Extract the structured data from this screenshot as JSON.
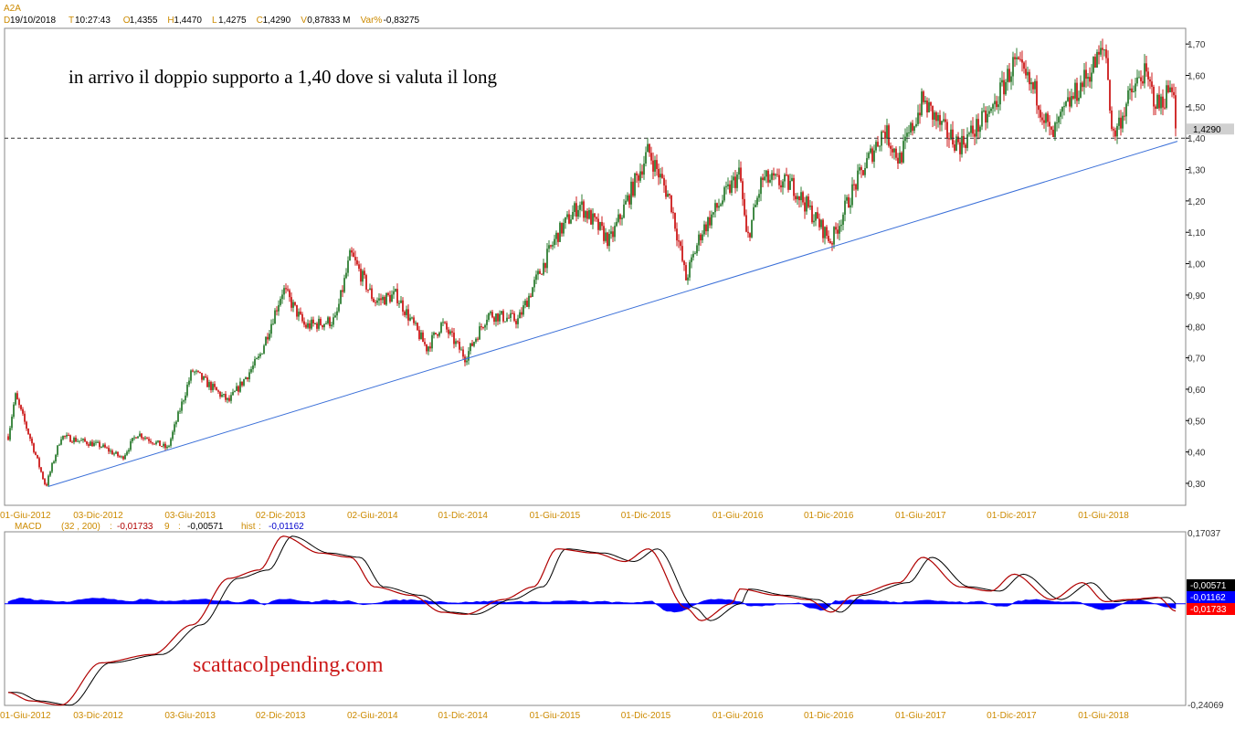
{
  "symbol": "A2A",
  "info_bar": [
    {
      "key": "D",
      "value": "19/10/2018"
    },
    {
      "key": "T",
      "value": "10:27:43"
    },
    {
      "key": "O",
      "value": "1,4355"
    },
    {
      "key": "H",
      "value": "1,4470"
    },
    {
      "key": "L",
      "value": "1,4275"
    },
    {
      "key": "C",
      "value": "1,4290"
    },
    {
      "key": "V",
      "value": "0,87833 M"
    },
    {
      "key": "Var%",
      "value": "-0,83275"
    }
  ],
  "colors": {
    "up": "#2e7d32",
    "down": "#cc1a1a",
    "axis_label": "#cc8a00",
    "trendline": "#3a6fd8",
    "macd_hist": "#0000ff",
    "macd_line": "#b00000",
    "signal_line": "#000000"
  },
  "chart_data": [
    {
      "type": "candlestick",
      "title": "",
      "annotation": "in arrivo il doppio supporto a 1,40 dove si valuta il long",
      "x_tick_labels": [
        "01-Giu-2012",
        "03-Dic-2012",
        "03-Giu-2013",
        "02-Dic-2013",
        "02-Giu-2014",
        "01-Dic-2014",
        "01-Giu-2015",
        "01-Dic-2015",
        "01-Giu-2016",
        "01-Dic-2016",
        "01-Giu-2017",
        "01-Dic-2017",
        "01-Giu-2018"
      ],
      "y_ticks": [
        "0,30",
        "0,40",
        "0,50",
        "0,60",
        "0,70",
        "0,80",
        "0,90",
        "1,00",
        "1,10",
        "1,20",
        "1,30",
        "1,40",
        "1,50",
        "1,60",
        "1,70"
      ],
      "ylim": [
        0.23,
        1.75
      ],
      "last_price_label": "1,4290",
      "support_level": 1.4,
      "trendline": {
        "from": [
          "01-Giu-2012",
          0.29
        ],
        "to": [
          "19/10/2018",
          1.39
        ]
      },
      "price_path": [
        [
          "01-Giu-2012",
          0.45
        ],
        [
          "2012-06",
          0.58
        ],
        [
          "2012-07",
          0.44
        ],
        [
          "2012-08",
          0.29
        ],
        [
          "2012-09",
          0.45
        ],
        [
          "03-Dic-2012",
          0.42
        ],
        [
          "2013-01",
          0.38
        ],
        [
          "2013-02",
          0.46
        ],
        [
          "2013-04",
          0.41
        ],
        [
          "03-Giu-2013",
          0.66
        ],
        [
          "2013-08",
          0.56
        ],
        [
          "2013-10",
          0.7
        ],
        [
          "02-Dic-2013",
          0.92
        ],
        [
          "2014-01",
          0.8
        ],
        [
          "2014-03",
          0.82
        ],
        [
          "2014-04",
          1.03
        ],
        [
          "02-Giu-2014",
          0.88
        ],
        [
          "2014-07",
          0.9
        ],
        [
          "2014-09",
          0.73
        ],
        [
          "2014-10",
          0.81
        ],
        [
          "01-Dic-2014",
          0.7
        ],
        [
          "2015-01",
          0.84
        ],
        [
          "2015-03",
          0.82
        ],
        [
          "2015-04",
          0.93
        ],
        [
          "01-Giu-2015",
          1.09
        ],
        [
          "2015-07",
          1.19
        ],
        [
          "2015-09",
          1.07
        ],
        [
          "01-Dic-2015",
          1.36
        ],
        [
          "2016-01",
          1.2
        ],
        [
          "2016-02",
          0.95
        ],
        [
          "2016-03",
          1.1
        ],
        [
          "01-Giu-2016",
          1.29
        ],
        [
          "2016-06",
          1.07
        ],
        [
          "2016-07",
          1.27
        ],
        [
          "2016-09",
          1.25
        ],
        [
          "01-Dic-2016",
          1.07
        ],
        [
          "2017-01",
          1.24
        ],
        [
          "2017-03",
          1.43
        ],
        [
          "2017-04",
          1.33
        ],
        [
          "01-Giu-2017",
          1.52
        ],
        [
          "2017-07",
          1.42
        ],
        [
          "2017-08",
          1.38
        ],
        [
          "2017-10",
          1.48
        ],
        [
          "01-Dic-2017",
          1.64
        ],
        [
          "2018-01",
          1.54
        ],
        [
          "2018-02",
          1.4
        ],
        [
          "2018-03",
          1.5
        ],
        [
          "01-Giu-2018",
          1.69
        ],
        [
          "2018-06",
          1.4
        ],
        [
          "2018-07",
          1.52
        ],
        [
          "2018-08",
          1.61
        ],
        [
          "2018-09",
          1.5
        ],
        [
          "2018-10",
          1.58
        ],
        [
          "19/10/2018",
          1.429
        ]
      ]
    },
    {
      "type": "line",
      "title": "MACD",
      "params": "(32 , 200)",
      "macd_value": "-0,01733",
      "signal_label": "9",
      "signal_value": "-0,00571",
      "hist_label": "hist",
      "hist_value": "-0,01162",
      "y_ticks": [
        "0,17037",
        "-0,24069"
      ],
      "ylim": [
        -0.24069,
        0.17037
      ],
      "right_labels": [
        "-0,00571",
        "-0,01162",
        "-0,01733"
      ],
      "x_tick_labels": [
        "01-Giu-2012",
        "03-Dic-2012",
        "03-Giu-2013",
        "02-Dic-2013",
        "02-Giu-2014",
        "01-Dic-2014",
        "01-Giu-2015",
        "01-Dic-2015",
        "01-Giu-2016",
        "01-Dic-2016",
        "01-Giu-2017",
        "01-Dic-2017",
        "01-Giu-2018"
      ],
      "macd_path": [
        [
          "01-Giu-2012",
          -0.21
        ],
        [
          "2012-07",
          -0.23
        ],
        [
          "2012-09",
          -0.24
        ],
        [
          "03-Dic-2012",
          -0.14
        ],
        [
          "2013-03",
          -0.12
        ],
        [
          "03-Giu-2013",
          -0.05
        ],
        [
          "2013-08",
          0.06
        ],
        [
          "2013-10",
          0.08
        ],
        [
          "02-Dic-2013",
          0.16
        ],
        [
          "2014-02",
          0.12
        ],
        [
          "2014-04",
          0.11
        ],
        [
          "02-Giu-2014",
          0.04
        ],
        [
          "2014-08",
          0.02
        ],
        [
          "2014-10",
          -0.02
        ],
        [
          "01-Dic-2014",
          -0.025
        ],
        [
          "2015-02",
          0.01
        ],
        [
          "2015-04",
          0.04
        ],
        [
          "01-Giu-2015",
          0.13
        ],
        [
          "2015-08",
          0.12
        ],
        [
          "2015-10",
          0.1
        ],
        [
          "01-Dic-2015",
          0.13
        ],
        [
          "2016-02",
          -0.01
        ],
        [
          "2016-03",
          -0.04
        ],
        [
          "2016-05",
          0.0
        ],
        [
          "01-Giu-2016",
          0.035
        ],
        [
          "2016-08",
          0.02
        ],
        [
          "2016-10",
          0.01
        ],
        [
          "01-Dic-2016",
          -0.02
        ],
        [
          "2017-01",
          0.02
        ],
        [
          "2017-04",
          0.05
        ],
        [
          "01-Giu-2017",
          0.11
        ],
        [
          "2017-08",
          0.04
        ],
        [
          "2017-10",
          0.03
        ],
        [
          "01-Dic-2017",
          0.07
        ],
        [
          "2018-02",
          0.01
        ],
        [
          "2018-04",
          0.05
        ],
        [
          "01-Giu-2018",
          0.005
        ],
        [
          "2018-07",
          0.01
        ],
        [
          "2018-09",
          0.015
        ],
        [
          "19/10/2018",
          -0.01733
        ]
      ],
      "hist_values": [
        0.004,
        0.015,
        0.01,
        0.007,
        0.006,
        0.004,
        0.01,
        0.014,
        0.012,
        0.008,
        0.004,
        0.011,
        0.008,
        0.005,
        0.006,
        0.01,
        0.011,
        0.008,
        0.007,
        0.003,
        0.011,
        -0.003,
        0.01,
        0.012,
        0.007,
        0.003,
        0.009,
        0.006,
        0.006,
        -0.002,
        0.001,
        0.006,
        0.008,
        0.009,
        0.008,
        0.006,
        0.004,
        0.002,
        0.004,
        0.005,
        0.006,
        0.004,
        0.004,
        0.006,
        0.003,
        0.006,
        0.006,
        0.006,
        0.004,
        0.005,
        0.003,
        0.002,
        0.004,
        0.005,
        -0.016,
        -0.02,
        -0.01,
        0.006,
        0.01,
        0.009,
        0.006,
        -0.006,
        -0.004,
        -0.002,
        0.001,
        0.002,
        -0.01,
        -0.016,
        0.006,
        0.008,
        0.01,
        0.008,
        0.006,
        0.003,
        0.005,
        0.009,
        0.008,
        0.005,
        0.004,
        0.003,
        0.006,
        -0.003,
        -0.007,
        0.006,
        0.009,
        0.01,
        0.006,
        0.004,
        0.004,
        -0.006,
        -0.016,
        -0.01,
        0.006,
        0.008,
        0.004,
        -0.006,
        -0.011
      ]
    }
  ],
  "watermark": "scattacolpending.com"
}
